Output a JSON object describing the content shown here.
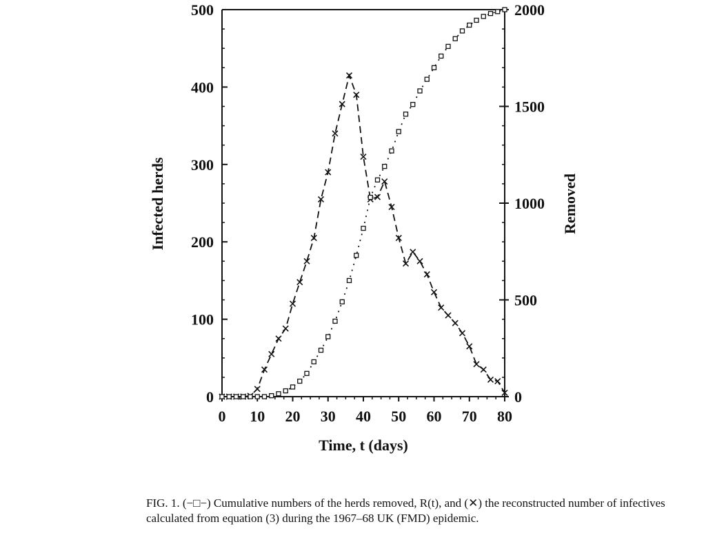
{
  "chart_data": {
    "type": "line",
    "xlabel": "Time, t (days)",
    "ylabel": "Infected herds",
    "y2label": "Removed",
    "xlim": [
      0,
      80
    ],
    "ylim": [
      0,
      500
    ],
    "y2lim": [
      0,
      2000
    ],
    "xticks": [
      "0",
      "10",
      "20",
      "30",
      "40",
      "50",
      "60",
      "70",
      "80"
    ],
    "yticks": [
      "0",
      "100",
      "200",
      "300",
      "400",
      "500"
    ],
    "y2ticks": [
      "0",
      "500",
      "1000",
      "1500",
      "2000"
    ],
    "grid": false,
    "series": [
      {
        "marker": "x",
        "line_style": "dashed",
        "axis": "left",
        "x": [
          0,
          2,
          4,
          6,
          8,
          10,
          12,
          14,
          16,
          18,
          20,
          22,
          24,
          26,
          28,
          30,
          32,
          34,
          36,
          38,
          40,
          42,
          44,
          46,
          48,
          50,
          52,
          54,
          56,
          58,
          60,
          62,
          64,
          66,
          68,
          70,
          72,
          74,
          76,
          78,
          80
        ],
        "values": [
          0,
          0,
          0,
          0,
          1,
          10,
          35,
          55,
          75,
          88,
          120,
          148,
          175,
          205,
          255,
          290,
          340,
          378,
          415,
          390,
          310,
          255,
          258,
          278,
          245,
          205,
          172,
          187,
          175,
          158,
          135,
          115,
          105,
          95,
          82,
          65,
          42,
          35,
          22,
          20,
          5
        ]
      },
      {
        "marker": "square",
        "line_style": "dotted",
        "axis": "right",
        "x": [
          0,
          2,
          4,
          6,
          8,
          10,
          12,
          14,
          16,
          18,
          20,
          22,
          24,
          26,
          28,
          30,
          32,
          34,
          36,
          38,
          40,
          42,
          44,
          46,
          48,
          50,
          52,
          54,
          56,
          58,
          60,
          62,
          64,
          66,
          68,
          70,
          72,
          74,
          76,
          78,
          80
        ],
        "values": [
          0,
          0,
          0,
          0,
          0,
          0,
          0,
          5,
          15,
          30,
          50,
          80,
          120,
          180,
          240,
          310,
          390,
          490,
          600,
          730,
          870,
          1030,
          1120,
          1190,
          1270,
          1370,
          1460,
          1510,
          1580,
          1640,
          1700,
          1760,
          1810,
          1850,
          1890,
          1920,
          1945,
          1965,
          1980,
          1990,
          2000
        ]
      }
    ]
  },
  "caption": {
    "line1": "FIG. 1. (−□−) Cumulative numbers of the herds removed, R(t), and (✕) the reconstructed number of infectives",
    "line2": "calculated from equation (3) during the 1967–68 UK (FMD) epidemic."
  }
}
